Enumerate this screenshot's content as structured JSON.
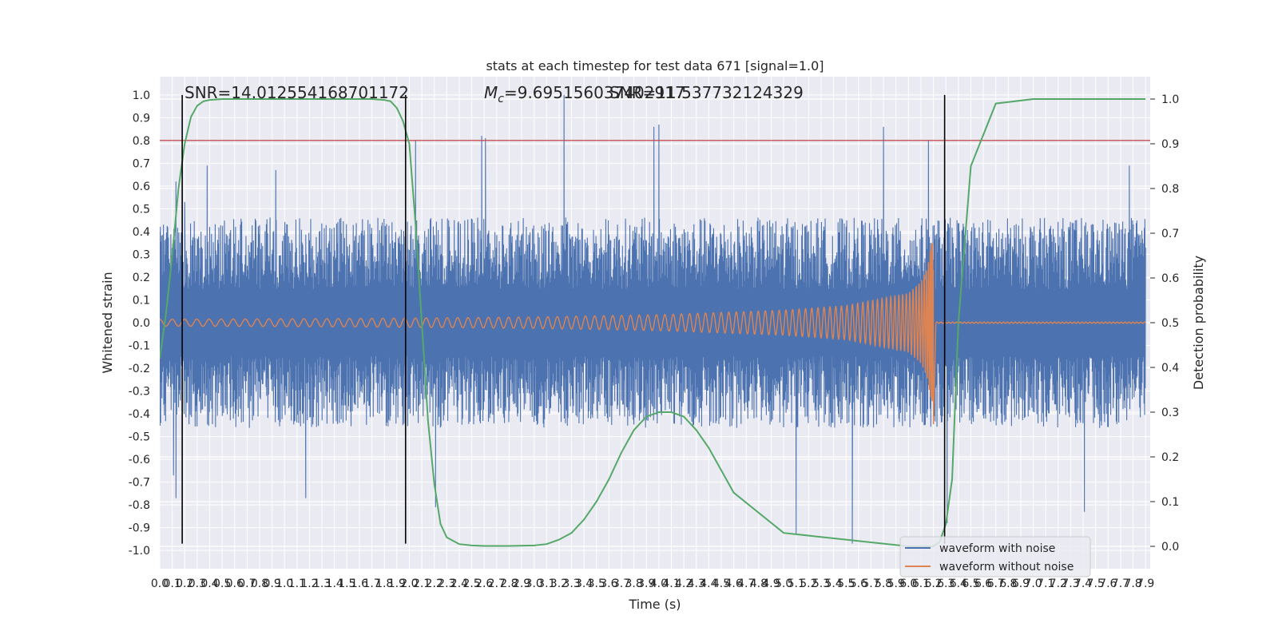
{
  "chart_data": {
    "type": "line",
    "title": "stats at each timestep for test data 671 [signal=1.0]",
    "xlabel": "Time (s)",
    "ylabel": "Whitened strain",
    "y2label": "Detection probability",
    "xlim": [
      0.0,
      7.9
    ],
    "ylim": [
      -1.08,
      1.08
    ],
    "y2lim": [
      -0.05,
      1.05
    ],
    "x_ticks": [
      "0.0",
      "0.1",
      "0.2",
      "0.3",
      "0.4",
      "0.5",
      "0.6",
      "0.7",
      "0.8",
      "0.9",
      "1.0",
      "1.1",
      "1.2",
      "1.3",
      "1.4",
      "1.5",
      "1.6",
      "1.7",
      "1.8",
      "1.9",
      "2.0",
      "2.1",
      "2.2",
      "2.3",
      "2.4",
      "2.5",
      "2.6",
      "2.7",
      "2.8",
      "2.9",
      "3.0",
      "3.1",
      "3.2",
      "3.3",
      "3.4",
      "3.5",
      "3.6",
      "3.7",
      "3.8",
      "3.9",
      "4.0",
      "4.1",
      "4.2",
      "4.3",
      "4.4",
      "4.5",
      "4.6",
      "4.7",
      "4.8",
      "4.9",
      "5.0",
      "5.1",
      "5.2",
      "5.3",
      "5.4",
      "5.5",
      "5.6",
      "5.7",
      "5.8",
      "5.9",
      "6.0",
      "6.1",
      "6.2",
      "6.3",
      "6.4",
      "6.5",
      "6.6",
      "6.7",
      "6.8",
      "6.9",
      "7.0",
      "7.1",
      "7.2",
      "7.3",
      "7.4",
      "7.5",
      "7.6",
      "7.7",
      "7.8",
      "7.9"
    ],
    "y_ticks": [
      "1.0",
      "0.9",
      "0.8",
      "0.7",
      "0.6",
      "0.5",
      "0.4",
      "0.3",
      "0.2",
      "0.1",
      "0.0",
      "-0.1",
      "-0.2",
      "-0.3",
      "-0.4",
      "-0.5",
      "-0.6",
      "-0.7",
      "-0.8",
      "-0.9",
      "-1.0"
    ],
    "y2_ticks": [
      "1.0",
      "0.9",
      "0.8",
      "0.7",
      "0.6",
      "0.5",
      "0.4",
      "0.3",
      "0.2",
      "0.1",
      "0.0"
    ],
    "threshold": 0.8,
    "vertical_markers": [
      0.18,
      1.97,
      6.29
    ],
    "annotations": {
      "snr": "SNR=14.012554168701172",
      "mc_prefix": "M",
      "mc_sub": "c",
      "mc_value": "=9.695156037402917",
      "overlap": "SNR=11.53773212432​9"
    },
    "series": [
      {
        "name": "waveform with noise",
        "color": "#4c72b0",
        "envelope": {
          "x": [
            0.0,
            1.0,
            2.0,
            3.0,
            4.0,
            5.0,
            6.0,
            7.0,
            7.9
          ],
          "upper_typical": [
            0.42,
            0.42,
            0.42,
            0.42,
            0.42,
            0.42,
            0.42,
            0.42,
            0.42
          ],
          "lower_typical": [
            -0.42,
            -0.42,
            -0.42,
            -0.42,
            -0.42,
            -0.42,
            -0.42,
            -0.42,
            -0.42
          ]
        },
        "notable_peaks": [
          {
            "x": 0.13,
            "y": 0.62
          },
          {
            "x": 0.2,
            "y": 0.53
          },
          {
            "x": 0.38,
            "y": 0.69
          },
          {
            "x": 0.93,
            "y": 0.67
          },
          {
            "x": 2.05,
            "y": 0.8
          },
          {
            "x": 2.58,
            "y": 0.82
          },
          {
            "x": 2.61,
            "y": 0.81
          },
          {
            "x": 3.24,
            "y": 1.0
          },
          {
            "x": 3.96,
            "y": 0.86
          },
          {
            "x": 4.0,
            "y": 0.87
          },
          {
            "x": 5.8,
            "y": 0.86
          },
          {
            "x": 6.16,
            "y": 0.8
          },
          {
            "x": 7.77,
            "y": 0.69
          }
        ],
        "notable_troughs": [
          {
            "x": 0.11,
            "y": -0.67
          },
          {
            "x": 0.13,
            "y": -0.77
          },
          {
            "x": 1.17,
            "y": -0.77
          },
          {
            "x": 2.21,
            "y": -0.81
          },
          {
            "x": 5.1,
            "y": -0.93
          },
          {
            "x": 5.55,
            "y": -0.97
          },
          {
            "x": 6.31,
            "y": -0.88
          },
          {
            "x": 7.41,
            "y": -0.83
          }
        ]
      },
      {
        "name": "waveform without noise",
        "color": "#dd8452",
        "amplitude": {
          "x": [
            0.0,
            1.0,
            2.0,
            3.0,
            4.0,
            5.0,
            5.5,
            6.0,
            6.1,
            6.15,
            6.2
          ],
          "value": [
            0.015,
            0.017,
            0.02,
            0.025,
            0.035,
            0.055,
            0.075,
            0.13,
            0.18,
            0.24,
            0.4
          ]
        },
        "merger_time": 6.2
      },
      {
        "name": "detection probability",
        "color": "#55a868",
        "axis": "right",
        "x": [
          0.0,
          0.05,
          0.1,
          0.15,
          0.2,
          0.25,
          0.3,
          0.35,
          0.4,
          0.5,
          0.6,
          0.8,
          1.0,
          1.4,
          1.7,
          1.8,
          1.85,
          1.9,
          1.95,
          2.0,
          2.05,
          2.1,
          2.15,
          2.2,
          2.25,
          2.3,
          2.4,
          2.5,
          2.6,
          2.8,
          3.0,
          3.1,
          3.2,
          3.3,
          3.4,
          3.5,
          3.6,
          3.7,
          3.8,
          3.9,
          4.0,
          4.1,
          4.2,
          4.3,
          4.4,
          4.6,
          5.0,
          6.0,
          6.05,
          6.1,
          6.15,
          6.2,
          6.25,
          6.3,
          6.35,
          6.4,
          6.5,
          6.7,
          7.0,
          7.9
        ],
        "values": [
          0.42,
          0.52,
          0.65,
          0.8,
          0.9,
          0.96,
          0.985,
          0.995,
          0.998,
          1.0,
          1.0,
          1.0,
          1.0,
          1.0,
          1.0,
          0.998,
          0.995,
          0.98,
          0.95,
          0.9,
          0.72,
          0.5,
          0.28,
          0.14,
          0.05,
          0.02,
          0.005,
          0.002,
          0.001,
          0.001,
          0.002,
          0.005,
          0.015,
          0.03,
          0.06,
          0.1,
          0.15,
          0.21,
          0.26,
          0.29,
          0.3,
          0.3,
          0.29,
          0.26,
          0.22,
          0.12,
          0.03,
          0.0,
          0.0,
          0.0,
          0.0,
          0.0,
          0.01,
          0.05,
          0.15,
          0.5,
          0.85,
          0.99,
          1.0,
          1.0
        ]
      }
    ],
    "legend": {
      "position": "lower-right",
      "items": [
        "waveform with noise",
        "waveform without noise"
      ]
    },
    "grid": true,
    "colors": {
      "background": "#eaeaf2",
      "grid": "#ffffff",
      "threshold": "#c44e52",
      "marker": "#000000"
    }
  }
}
